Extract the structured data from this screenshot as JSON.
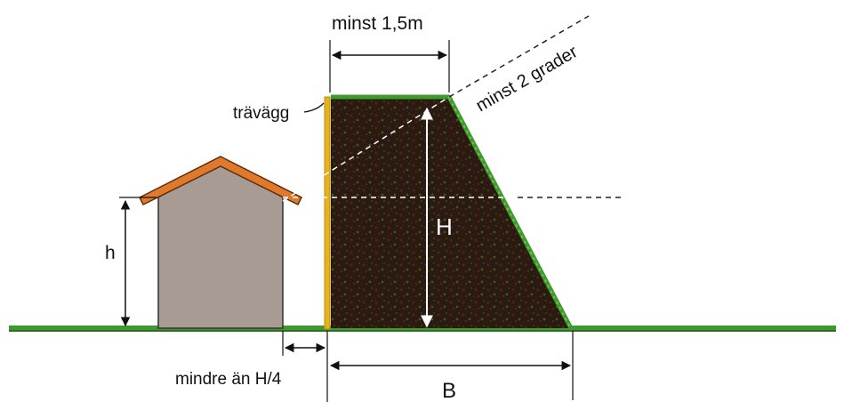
{
  "labels": {
    "top_width": "minst 1,5m",
    "wall": "trävägg",
    "angle": "minst 2 grader",
    "height_large": "H",
    "height_small": "h",
    "distance": "mindre än H/4",
    "base_width": "B"
  },
  "colors": {
    "soil": "#2a1a12",
    "grass": "#3f9a2e",
    "roof": "#e07a2a",
    "house": "#a89b94",
    "wall": "#e8b21a"
  }
}
